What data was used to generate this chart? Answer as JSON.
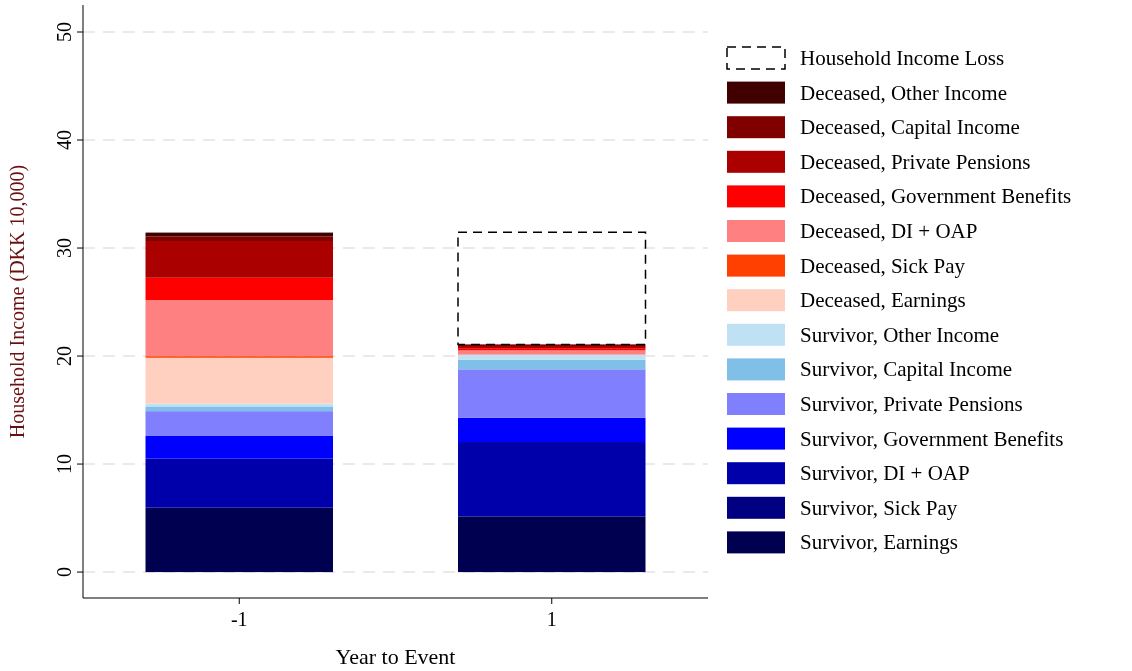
{
  "chart_data": {
    "type": "bar",
    "stacked": true,
    "xlabel": "Year to Event",
    "ylabel": "Household Income (DKK 10,000)",
    "categories": [
      "-1",
      "1"
    ],
    "series": [
      {
        "name": "Survivor, Earnings",
        "color": "#000050",
        "values": [
          5.96,
          5.16
        ]
      },
      {
        "name": "Survivor, Sick Pay",
        "color": "#000080",
        "values": [
          0,
          0
        ]
      },
      {
        "name": "Survivor, DI + OAP",
        "color": "#0000aa",
        "values": [
          4.54,
          6.88
        ]
      },
      {
        "name": "Survivor, Government Benefits",
        "color": "#0000ff",
        "values": [
          2.1,
          2.26
        ]
      },
      {
        "name": "Survivor, Private Pensions",
        "color": "#8080ff",
        "values": [
          2.3,
          4.47
        ]
      },
      {
        "name": "Survivor, Capital Income",
        "color": "#80c0e8",
        "values": [
          0.44,
          0.9
        ]
      },
      {
        "name": "Survivor, Other Income",
        "color": "#c0e0f4",
        "values": [
          0.25,
          0.46
        ]
      },
      {
        "name": "Deceased, Earnings",
        "color": "#ffd0c0",
        "values": [
          4.25,
          null
        ]
      },
      {
        "name": "Deceased, Sick Pay",
        "color": "#ff4000",
        "values": [
          0.15,
          0
        ]
      },
      {
        "name": "Deceased, DI + OAP",
        "color": "#ff8080",
        "values": [
          5.2,
          0.4
        ]
      },
      {
        "name": "Deceased, Government Benefits",
        "color": "#ff0000",
        "values": [
          2.06,
          0.2
        ]
      },
      {
        "name": "Deceased, Private Pensions",
        "color": "#aa0000",
        "values": [
          3.4,
          0.2
        ]
      },
      {
        "name": "Deceased, Capital Income",
        "color": "#800000",
        "values": [
          0.43,
          0.15
        ]
      },
      {
        "name": "Deceased, Other Income",
        "color": "#400000",
        "values": [
          0.35,
          null
        ]
      },
      {
        "name": "Household Income Loss",
        "color": "#000000",
        "line_style": "dashed",
        "values": [
          0,
          10.37
        ]
      }
    ],
    "ylim": [
      -2.4,
      52.5
    ],
    "yticks": [
      0,
      10,
      20,
      30,
      40,
      50
    ],
    "grid": "y",
    "legend": "right"
  }
}
